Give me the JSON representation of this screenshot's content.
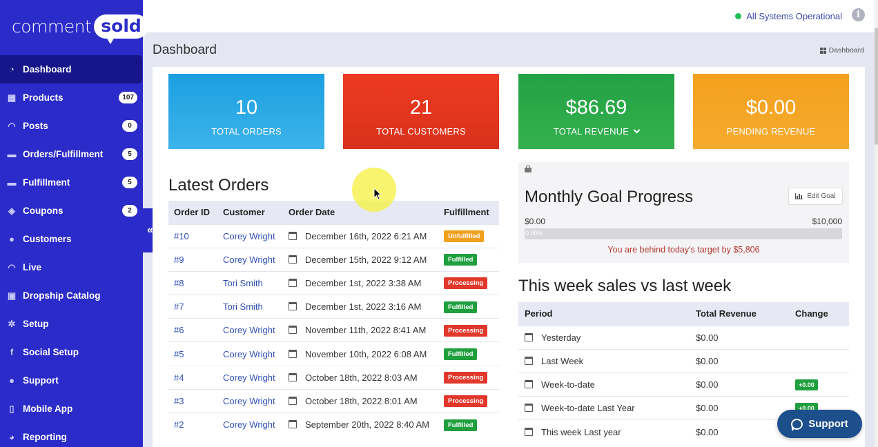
{
  "brand": {
    "comment": "comment",
    "sold": "sold"
  },
  "sidebar": {
    "items": [
      {
        "label": "Dashboard",
        "icon": "dashboard-icon",
        "badge": ""
      },
      {
        "label": "Products",
        "icon": "grid-icon",
        "badge": "107"
      },
      {
        "label": "Posts",
        "icon": "rss-icon",
        "badge": "0"
      },
      {
        "label": "Orders/Fulfillment",
        "icon": "truck-icon",
        "badge": "5"
      },
      {
        "label": "Fulfillment",
        "icon": "truck-icon",
        "badge": "5"
      },
      {
        "label": "Coupons",
        "icon": "tag-icon",
        "badge": "2"
      },
      {
        "label": "Customers",
        "icon": "user-icon",
        "badge": ""
      },
      {
        "label": "Live",
        "icon": "rss-icon",
        "badge": ""
      },
      {
        "label": "Dropship Catalog",
        "icon": "catalog-icon",
        "badge": ""
      },
      {
        "label": "Setup",
        "icon": "gears-icon",
        "badge": ""
      },
      {
        "label": "Social Setup",
        "icon": "facebook-icon",
        "badge": ""
      },
      {
        "label": "Support",
        "icon": "chat-icon",
        "badge": ""
      },
      {
        "label": "Mobile App",
        "icon": "mobile-icon",
        "badge": ""
      },
      {
        "label": "Reporting",
        "icon": "pie-chart-icon",
        "badge": ""
      }
    ],
    "collapse_glyph": "«"
  },
  "topbar": {
    "status_text": "All Systems Operational",
    "info_glyph": "i"
  },
  "page": {
    "title": "Dashboard",
    "breadcrumb": "Dashboard"
  },
  "stats": [
    {
      "value": "10",
      "label": "TOTAL ORDERS"
    },
    {
      "value": "21",
      "label": "TOTAL CUSTOMERS"
    },
    {
      "value": "$86.69",
      "label": "TOTAL REVENUE"
    },
    {
      "value": "$0.00",
      "label": "PENDING REVENUE"
    }
  ],
  "latest_orders": {
    "title": "Latest Orders",
    "columns": [
      "Order ID",
      "Customer",
      "Order Date",
      "Fulfillment"
    ],
    "rows": [
      {
        "id": "#10",
        "customer": "Corey Wright",
        "date": "December 16th, 2022 6:21 AM",
        "status": "Unfulfilled"
      },
      {
        "id": "#9",
        "customer": "Corey Wright",
        "date": "December 15th, 2022 9:12 AM",
        "status": "Fulfilled"
      },
      {
        "id": "#8",
        "customer": "Tori Smith",
        "date": "December 1st, 2022 3:38 AM",
        "status": "Processing"
      },
      {
        "id": "#7",
        "customer": "Tori Smith",
        "date": "December 1st, 2022 3:16 AM",
        "status": "Fulfilled"
      },
      {
        "id": "#6",
        "customer": "Corey Wright",
        "date": "November 11th, 2022 8:41 AM",
        "status": "Processing"
      },
      {
        "id": "#5",
        "customer": "Corey Wright",
        "date": "November 10th, 2022 6:08 AM",
        "status": "Fulfilled"
      },
      {
        "id": "#4",
        "customer": "Corey Wright",
        "date": "October 18th, 2022 8:03 AM",
        "status": "Processing"
      },
      {
        "id": "#3",
        "customer": "Corey Wright",
        "date": "October 18th, 2022 8:01 AM",
        "status": "Processing"
      },
      {
        "id": "#2",
        "customer": "Corey Wright",
        "date": "September 20th, 2022 8:40 AM",
        "status": "Fulfilled"
      }
    ]
  },
  "goal": {
    "title": "Monthly Goal Progress",
    "edit_label": "Edit Goal",
    "min": "$0.00",
    "max": "$10,000",
    "progress_label": "0.00%",
    "progress_value": 0,
    "message": "You are behind today's target by $5,806"
  },
  "weekly": {
    "title": "This week sales vs last week",
    "columns": [
      "Period",
      "Total Revenue",
      "Change"
    ],
    "rows": [
      {
        "period": "Yesterday",
        "revenue": "$0.00",
        "change": ""
      },
      {
        "period": "Last Week",
        "revenue": "$0.00",
        "change": ""
      },
      {
        "period": "Week-to-date",
        "revenue": "$0.00",
        "change": "+0.00"
      },
      {
        "period": "Week-to-date Last Year",
        "revenue": "$0.00",
        "change": "+0.00"
      },
      {
        "period": "This week Last year",
        "revenue": "$0.00",
        "change": ""
      }
    ]
  },
  "support_button": "Support",
  "colors": {
    "sidebar": "#2b2bc9",
    "sidebar_active": "#16168a",
    "total_orders": "#1c9fe0",
    "total_customers": "#ee3a22",
    "total_revenue": "#23a244",
    "pending_revenue": "#f4a01d",
    "fulfilled": "#1f9f3e",
    "processing": "#e2372b",
    "unfulfilled": "#f0a01f",
    "link": "#2e4fb5"
  }
}
